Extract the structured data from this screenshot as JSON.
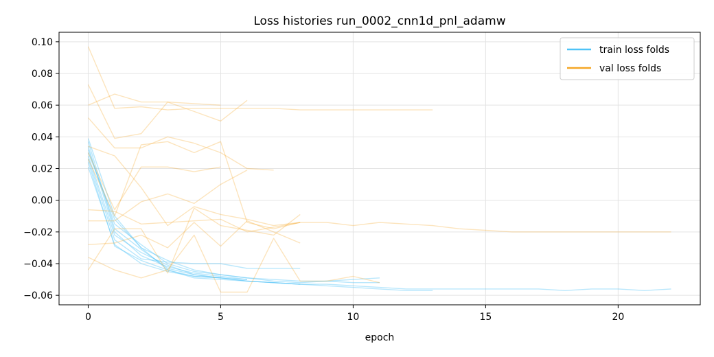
{
  "chart_data": {
    "type": "line",
    "title": "Loss histories run_0002_cnn1d_pnl_adamw",
    "xlabel": "epoch",
    "ylabel": "",
    "xlim": [
      -1.1,
      23.1
    ],
    "ylim": [
      -0.066,
      0.106
    ],
    "xticks": [
      0,
      5,
      10,
      15,
      20
    ],
    "yticks": [
      -0.06,
      -0.04,
      -0.02,
      0.0,
      0.02,
      0.04,
      0.06,
      0.08,
      0.1
    ],
    "ytick_labels": [
      "−0.06",
      "−0.04",
      "−0.02",
      "0.00",
      "0.02",
      "0.04",
      "0.06",
      "0.08",
      "0.10"
    ],
    "grid": true,
    "legend": {
      "position": "top-right",
      "entries": [
        {
          "label": "train loss folds",
          "color": "#4fc3f7"
        },
        {
          "label": "val loss folds",
          "color": "#f5a623"
        }
      ]
    },
    "series": [
      {
        "group": "train",
        "color": "#4fc3f7",
        "values": [
          0.034,
          -0.02,
          -0.035,
          -0.042,
          -0.046,
          -0.048,
          -0.05
        ]
      },
      {
        "group": "train",
        "color": "#4fc3f7",
        "values": [
          0.03,
          -0.012,
          -0.03,
          -0.038,
          -0.044,
          -0.047,
          -0.049,
          -0.05,
          -0.051,
          -0.051,
          -0.052,
          -0.052
        ]
      },
      {
        "group": "train",
        "color": "#4fc3f7",
        "values": [
          0.028,
          -0.022,
          -0.033,
          -0.041,
          -0.047,
          -0.049,
          -0.051,
          -0.052,
          -0.053
        ]
      },
      {
        "group": "train",
        "color": "#4fc3f7",
        "values": [
          0.037,
          -0.018,
          -0.031,
          -0.043,
          -0.047,
          -0.049,
          -0.051,
          -0.052,
          -0.053,
          -0.054,
          -0.055,
          -0.056,
          -0.057,
          -0.057
        ]
      },
      {
        "group": "train",
        "color": "#4fc3f7",
        "values": [
          0.026,
          -0.025,
          -0.037,
          -0.039,
          -0.04,
          -0.04,
          -0.043,
          -0.043,
          -0.043
        ]
      },
      {
        "group": "train",
        "color": "#4fc3f7",
        "values": [
          0.039,
          -0.01,
          -0.03,
          -0.044,
          -0.049,
          -0.05,
          -0.051,
          -0.052,
          -0.053,
          -0.053,
          -0.054,
          -0.055,
          -0.056,
          -0.056,
          -0.056,
          -0.056,
          -0.056,
          -0.056,
          -0.057,
          -0.056,
          -0.056,
          -0.057,
          -0.056
        ]
      },
      {
        "group": "train",
        "color": "#4fc3f7",
        "values": [
          0.021,
          -0.028,
          -0.04,
          -0.045,
          -0.048,
          -0.049,
          -0.05
        ]
      },
      {
        "group": "train",
        "color": "#4fc3f7",
        "values": [
          0.032,
          -0.015,
          -0.028,
          -0.04,
          -0.045,
          -0.047,
          -0.049,
          -0.051,
          -0.052,
          -0.051,
          -0.05,
          -0.049
        ]
      },
      {
        "group": "train",
        "color": "#4fc3f7",
        "values": [
          0.024,
          -0.029,
          -0.038,
          -0.044,
          -0.048,
          -0.049
        ]
      },
      {
        "group": "val",
        "color": "#f5a623",
        "values": [
          0.097,
          0.058,
          0.059,
          0.057,
          0.058,
          0.058,
          0.058,
          0.058,
          0.057,
          0.057,
          0.057,
          0.057,
          0.057,
          0.057
        ]
      },
      {
        "group": "val",
        "color": "#f5a623",
        "values": [
          0.073,
          0.039,
          0.042,
          0.062,
          0.056,
          0.05,
          0.063
        ]
      },
      {
        "group": "val",
        "color": "#f5a623",
        "values": [
          0.06,
          0.067,
          0.062,
          0.062,
          0.061,
          0.06
        ]
      },
      {
        "group": "val",
        "color": "#f5a623",
        "values": [
          0.052,
          0.033,
          0.033,
          0.04,
          0.036,
          0.03,
          0.02,
          0.019
        ]
      },
      {
        "group": "val",
        "color": "#f5a623",
        "values": [
          0.034,
          0.028,
          0.008,
          -0.016,
          -0.004,
          -0.009,
          -0.012,
          -0.016,
          -0.014
        ]
      },
      {
        "group": "val",
        "color": "#f5a623",
        "values": [
          0.03,
          -0.006,
          0.021,
          0.021,
          0.018,
          0.021
        ]
      },
      {
        "group": "val",
        "color": "#f5a623",
        "values": [
          0.026,
          -0.01,
          0.035,
          0.037,
          0.03,
          0.037,
          -0.014,
          -0.018,
          -0.014,
          -0.014,
          -0.016,
          -0.014,
          -0.015,
          -0.016,
          -0.018,
          -0.019,
          -0.02,
          -0.02,
          -0.02,
          -0.02,
          -0.02,
          -0.02,
          -0.02
        ]
      },
      {
        "group": "val",
        "color": "#f5a623",
        "values": [
          -0.006,
          -0.007,
          -0.015,
          -0.014,
          -0.013,
          -0.012,
          -0.02,
          -0.017,
          -0.014
        ]
      },
      {
        "group": "val",
        "color": "#f5a623",
        "values": [
          -0.013,
          -0.013,
          -0.001,
          0.004,
          -0.002,
          0.01,
          0.019
        ]
      },
      {
        "group": "val",
        "color": "#f5a623",
        "values": [
          -0.028,
          -0.027,
          -0.022,
          -0.03,
          -0.014,
          -0.029,
          -0.013,
          -0.02,
          -0.027
        ]
      },
      {
        "group": "val",
        "color": "#f5a623",
        "values": [
          -0.036,
          -0.044,
          -0.049,
          -0.044,
          -0.022,
          -0.058,
          -0.058,
          -0.024,
          -0.051,
          -0.051,
          -0.048,
          -0.052
        ]
      },
      {
        "group": "val",
        "color": "#f5a623",
        "values": [
          -0.044,
          -0.018,
          -0.018,
          -0.046,
          -0.005,
          -0.016,
          -0.019,
          -0.022,
          -0.009
        ]
      }
    ]
  }
}
